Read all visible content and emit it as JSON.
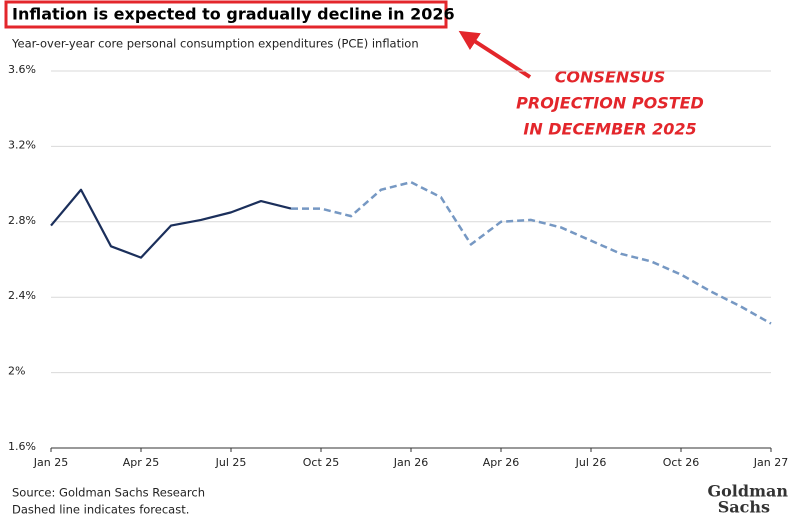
{
  "chart_data": {
    "type": "line",
    "title": "Inflation is expected to gradually decline in 2026",
    "subtitle": "Year-over-year core personal consumption expenditures (PCE) inflation",
    "annotation": [
      "CONSENSUS",
      "PROJECTION POSTED",
      "IN DECEMBER 2025"
    ],
    "source": [
      "Source: Goldman Sachs Research",
      "Dashed line indicates forecast."
    ],
    "logo": [
      "Goldman",
      "Sachs"
    ],
    "categories": [
      "Jan 25",
      null,
      null,
      "Apr 25",
      null,
      null,
      "Jul 25",
      null,
      null,
      "Oct 25",
      null,
      null,
      "Jan 26",
      null,
      null,
      "Apr 26",
      null,
      null,
      "Jul 26",
      null,
      null,
      "Oct 26",
      null,
      null,
      "Jan 27"
    ],
    "series": [
      {
        "color": "#1b2f5b",
        "dashed": false,
        "values": [
          2.78,
          2.97,
          2.67,
          2.61,
          2.78,
          2.81,
          2.85,
          2.91,
          2.87,
          null,
          null,
          null,
          null,
          null,
          null,
          null,
          null,
          null,
          null,
          null,
          null,
          null,
          null,
          null,
          null
        ]
      },
      {
        "color": "#7698c3",
        "dashed": true,
        "values": [
          null,
          null,
          null,
          null,
          null,
          null,
          null,
          null,
          2.87,
          2.87,
          2.83,
          2.97,
          3.01,
          2.93,
          2.68,
          2.8,
          2.81,
          2.77,
          2.7,
          2.63,
          2.59,
          2.52,
          2.43,
          2.35,
          2.26
        ]
      }
    ],
    "ylim": [
      1.6,
      3.6
    ],
    "yticks": [
      {
        "value": 1.6,
        "label": "1.6%"
      },
      {
        "value": 2,
        "label": "2%"
      },
      {
        "value": 2.4,
        "label": "2.4%"
      },
      {
        "value": 2.8,
        "label": "2.8%"
      },
      {
        "value": 3.2,
        "label": "3.2%"
      },
      {
        "value": 3.6,
        "label": "3.6%"
      }
    ],
    "grid": true
  }
}
